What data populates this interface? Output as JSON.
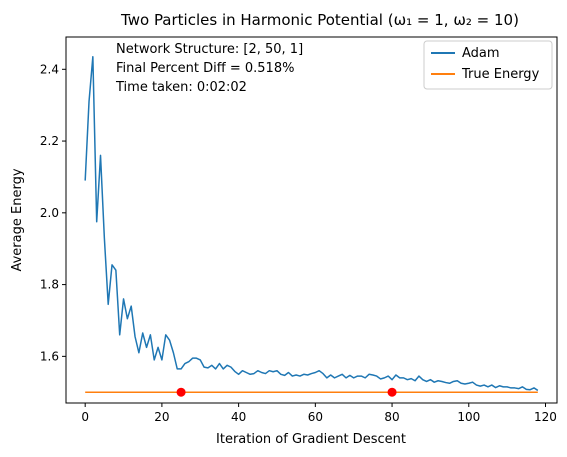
{
  "chart_data": {
    "type": "line",
    "title": "Two Particles in Harmonic Potential (ω₁ = 1, ω₂ = 10)",
    "xlabel": "Iteration of Gradient Descent",
    "ylabel": "Average Energy",
    "xlim": [
      -5,
      123
    ],
    "ylim": [
      1.47,
      2.49
    ],
    "xticks": [
      0,
      20,
      40,
      60,
      80,
      100,
      120
    ],
    "yticks": [
      1.6,
      1.8,
      2.0,
      2.2,
      2.4
    ],
    "ytick_labels": [
      "1.6",
      "1.8",
      "2.0",
      "2.2",
      "2.4"
    ],
    "legend_position": "top-right",
    "annotations": [
      "Network Structure: [2, 50, 1]",
      "Final Percent Diff = 0.518%",
      "Time taken: 0:02:02"
    ],
    "series": [
      {
        "name": "Adam",
        "color": "#1f77b4",
        "x": [
          0,
          1,
          2,
          3,
          4,
          5,
          6,
          7,
          8,
          9,
          10,
          11,
          12,
          13,
          14,
          15,
          16,
          17,
          18,
          19,
          20,
          21,
          22,
          23,
          24,
          25,
          26,
          27,
          28,
          29,
          30,
          31,
          32,
          33,
          34,
          35,
          36,
          37,
          38,
          39,
          40,
          41,
          42,
          43,
          44,
          45,
          46,
          47,
          48,
          49,
          50,
          51,
          52,
          53,
          54,
          55,
          56,
          57,
          58,
          59,
          60,
          61,
          62,
          63,
          64,
          65,
          66,
          67,
          68,
          69,
          70,
          71,
          72,
          73,
          74,
          75,
          76,
          77,
          78,
          79,
          80,
          81,
          82,
          83,
          84,
          85,
          86,
          87,
          88,
          89,
          90,
          91,
          92,
          93,
          94,
          95,
          96,
          97,
          98,
          99,
          100,
          101,
          102,
          103,
          104,
          105,
          106,
          107,
          108,
          109,
          110,
          111,
          112,
          113,
          114,
          115,
          116,
          117,
          118
        ],
        "values": [
          2.09,
          2.31,
          2.435,
          1.975,
          2.16,
          1.93,
          1.745,
          1.855,
          1.84,
          1.66,
          1.76,
          1.705,
          1.74,
          1.655,
          1.61,
          1.665,
          1.625,
          1.66,
          1.59,
          1.625,
          1.59,
          1.66,
          1.645,
          1.61,
          1.565,
          1.565,
          1.58,
          1.585,
          1.595,
          1.595,
          1.59,
          1.57,
          1.568,
          1.575,
          1.565,
          1.58,
          1.565,
          1.575,
          1.57,
          1.558,
          1.55,
          1.56,
          1.555,
          1.55,
          1.552,
          1.56,
          1.555,
          1.552,
          1.56,
          1.557,
          1.56,
          1.55,
          1.547,
          1.555,
          1.545,
          1.548,
          1.545,
          1.55,
          1.548,
          1.552,
          1.555,
          1.56,
          1.552,
          1.54,
          1.548,
          1.54,
          1.545,
          1.55,
          1.54,
          1.547,
          1.54,
          1.545,
          1.545,
          1.54,
          1.55,
          1.548,
          1.545,
          1.537,
          1.54,
          1.545,
          1.535,
          1.548,
          1.54,
          1.54,
          1.535,
          1.538,
          1.532,
          1.545,
          1.535,
          1.53,
          1.535,
          1.528,
          1.532,
          1.53,
          1.527,
          1.525,
          1.53,
          1.532,
          1.525,
          1.523,
          1.525,
          1.528,
          1.52,
          1.517,
          1.52,
          1.515,
          1.52,
          1.513,
          1.518,
          1.515,
          1.515,
          1.512,
          1.512,
          1.51,
          1.515,
          1.508,
          1.507,
          1.512,
          1.505
        ]
      },
      {
        "name": "True Energy",
        "color": "#ff7f0e",
        "x": [
          0,
          118
        ],
        "values": [
          1.5,
          1.5
        ]
      }
    ],
    "markers": {
      "color": "#ff0000",
      "x": [
        25,
        80
      ],
      "values": [
        1.5,
        1.5
      ]
    }
  }
}
